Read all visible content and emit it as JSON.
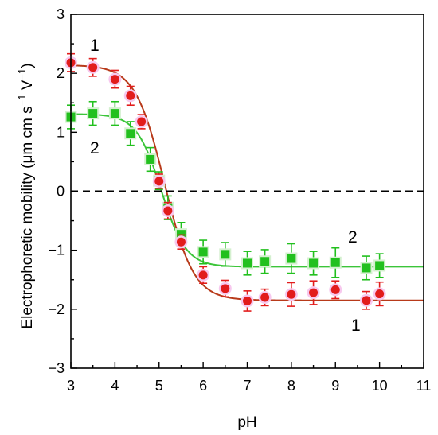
{
  "chart_data": {
    "type": "scatter",
    "xlabel": "pH",
    "ylabel": {
      "main": "Electrophoretic mobility (μm cm s",
      "sup1": "−1",
      "mid": " V",
      "sup2": "−1",
      "end": ")"
    },
    "xlim": [
      3,
      11
    ],
    "ylim": [
      -3,
      3
    ],
    "xticks": [
      "3",
      "4",
      "5",
      "6",
      "7",
      "8",
      "9",
      "10",
      "11"
    ],
    "yticks": [
      "−3",
      "−2",
      "−1",
      "0",
      "1",
      "2",
      "3"
    ],
    "zero_line": "dashed",
    "series": [
      {
        "name": "1",
        "marker": "circle",
        "color": "#e21c1c",
        "fit_color": "#b83a1a",
        "glow_color": "#f7c8ee",
        "x": [
          3.0,
          3.5,
          4.0,
          4.35,
          4.6,
          5.0,
          5.2,
          5.5,
          6.0,
          6.5,
          7.0,
          7.4,
          8.0,
          8.5,
          9.0,
          9.7,
          10.0
        ],
        "y": [
          2.18,
          2.1,
          1.9,
          1.62,
          1.18,
          0.17,
          -0.33,
          -0.86,
          -1.42,
          -1.65,
          -1.86,
          -1.8,
          -1.75,
          -1.72,
          -1.67,
          -1.85,
          -1.74
        ],
        "err": [
          0.15,
          0.15,
          0.15,
          0.16,
          0.12,
          0.12,
          0.14,
          0.12,
          0.14,
          0.14,
          0.17,
          0.14,
          0.2,
          0.2,
          0.15,
          0.15,
          0.2
        ],
        "fit": {
          "high": 2.14,
          "low": -1.85,
          "mid": 5.12,
          "width": 0.33
        },
        "label": "1"
      },
      {
        "name": "2",
        "marker": "square",
        "color": "#22c01e",
        "fit_color": "#3cc53a",
        "glow_color": "#d4f0cf",
        "x": [
          3.0,
          3.5,
          4.0,
          4.35,
          4.8,
          5.0,
          5.2,
          5.5,
          6.0,
          6.5,
          7.0,
          7.4,
          8.0,
          8.5,
          9.0,
          9.7,
          10.0
        ],
        "y": [
          1.26,
          1.32,
          1.32,
          0.98,
          0.54,
          0.18,
          -0.28,
          -0.73,
          -1.03,
          -1.07,
          -1.22,
          -1.19,
          -1.14,
          -1.22,
          -1.21,
          -1.3,
          -1.26
        ],
        "err": [
          0.2,
          0.2,
          0.2,
          0.2,
          0.2,
          0.15,
          0.2,
          0.2,
          0.2,
          0.2,
          0.2,
          0.2,
          0.25,
          0.2,
          0.25,
          0.2,
          0.2
        ],
        "fit": {
          "high": 1.31,
          "low": -1.28,
          "mid": 5.05,
          "width": 0.28
        },
        "label": "2"
      }
    ]
  }
}
